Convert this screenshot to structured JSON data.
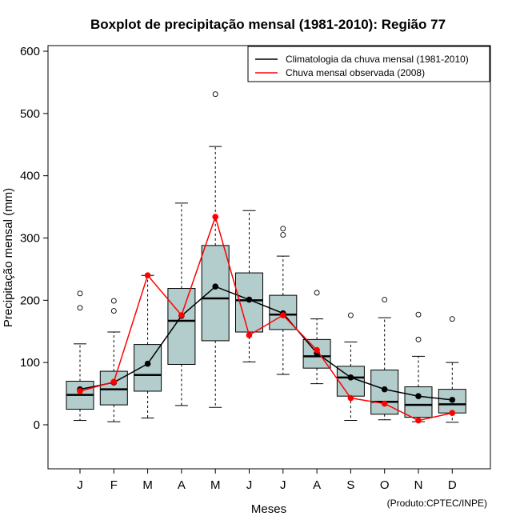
{
  "chart_data": {
    "type": "boxplot",
    "title": "Boxplot de precipitação mensal (1981-2010): Região 77",
    "xlabel": "Meses",
    "ylabel": "Precipitação mensal (mm)",
    "ylim": [
      -70,
      610
    ],
    "yticks": [
      0,
      100,
      200,
      300,
      400,
      500,
      600
    ],
    "categories": [
      "J",
      "F",
      "M",
      "A",
      "M",
      "J",
      "J",
      "A",
      "S",
      "O",
      "N",
      "D"
    ],
    "boxes": [
      {
        "min": 7,
        "q1": 25,
        "median": 48,
        "q3": 70,
        "max": 130,
        "outliers": [
          188,
          211
        ]
      },
      {
        "min": 5,
        "q1": 32,
        "median": 57,
        "q3": 86,
        "max": 149,
        "outliers": [
          183,
          199
        ]
      },
      {
        "min": 11,
        "q1": 54,
        "median": 80,
        "q3": 129,
        "max": 240,
        "outliers": []
      },
      {
        "min": 31,
        "q1": 97,
        "median": 167,
        "q3": 219,
        "max": 356,
        "outliers": []
      },
      {
        "min": 28,
        "q1": 135,
        "median": 203,
        "q3": 288,
        "max": 447,
        "outliers": [
          531
        ]
      },
      {
        "min": 101,
        "q1": 149,
        "median": 200,
        "q3": 244,
        "max": 344,
        "outliers": []
      },
      {
        "min": 81,
        "q1": 153,
        "median": 177,
        "q3": 208,
        "max": 271,
        "outliers": [
          305,
          315
        ]
      },
      {
        "min": 66,
        "q1": 91,
        "median": 110,
        "q3": 137,
        "max": 170,
        "outliers": [
          212
        ]
      },
      {
        "min": 7,
        "q1": 46,
        "median": 76,
        "q3": 94,
        "max": 133,
        "outliers": [
          176
        ]
      },
      {
        "min": 8,
        "q1": 17,
        "median": 37,
        "q3": 88,
        "max": 172,
        "outliers": [
          201
        ]
      },
      {
        "min": 5,
        "q1": 12,
        "median": 32,
        "q3": 61,
        "max": 110,
        "outliers": [
          137,
          177
        ]
      },
      {
        "min": 4,
        "q1": 19,
        "median": 33,
        "q3": 57,
        "max": 100,
        "outliers": [
          170
        ]
      }
    ],
    "series": [
      {
        "name": "Climatologia da chuva mensal (1981-2010)",
        "color": "#000000",
        "values": [
          57,
          68,
          98,
          175,
          222,
          201,
          179,
          115,
          76,
          57,
          46,
          40
        ]
      },
      {
        "name": "Chuva mensal observada (2008)",
        "color": "#ff0000",
        "values": [
          54,
          69,
          240,
          176,
          334,
          144,
          176,
          120,
          43,
          34,
          7,
          19
        ]
      }
    ],
    "legend_position": "top-right",
    "box_fill": "#b3cccc",
    "credit": "(Produto:CPTEC/INPE)"
  }
}
